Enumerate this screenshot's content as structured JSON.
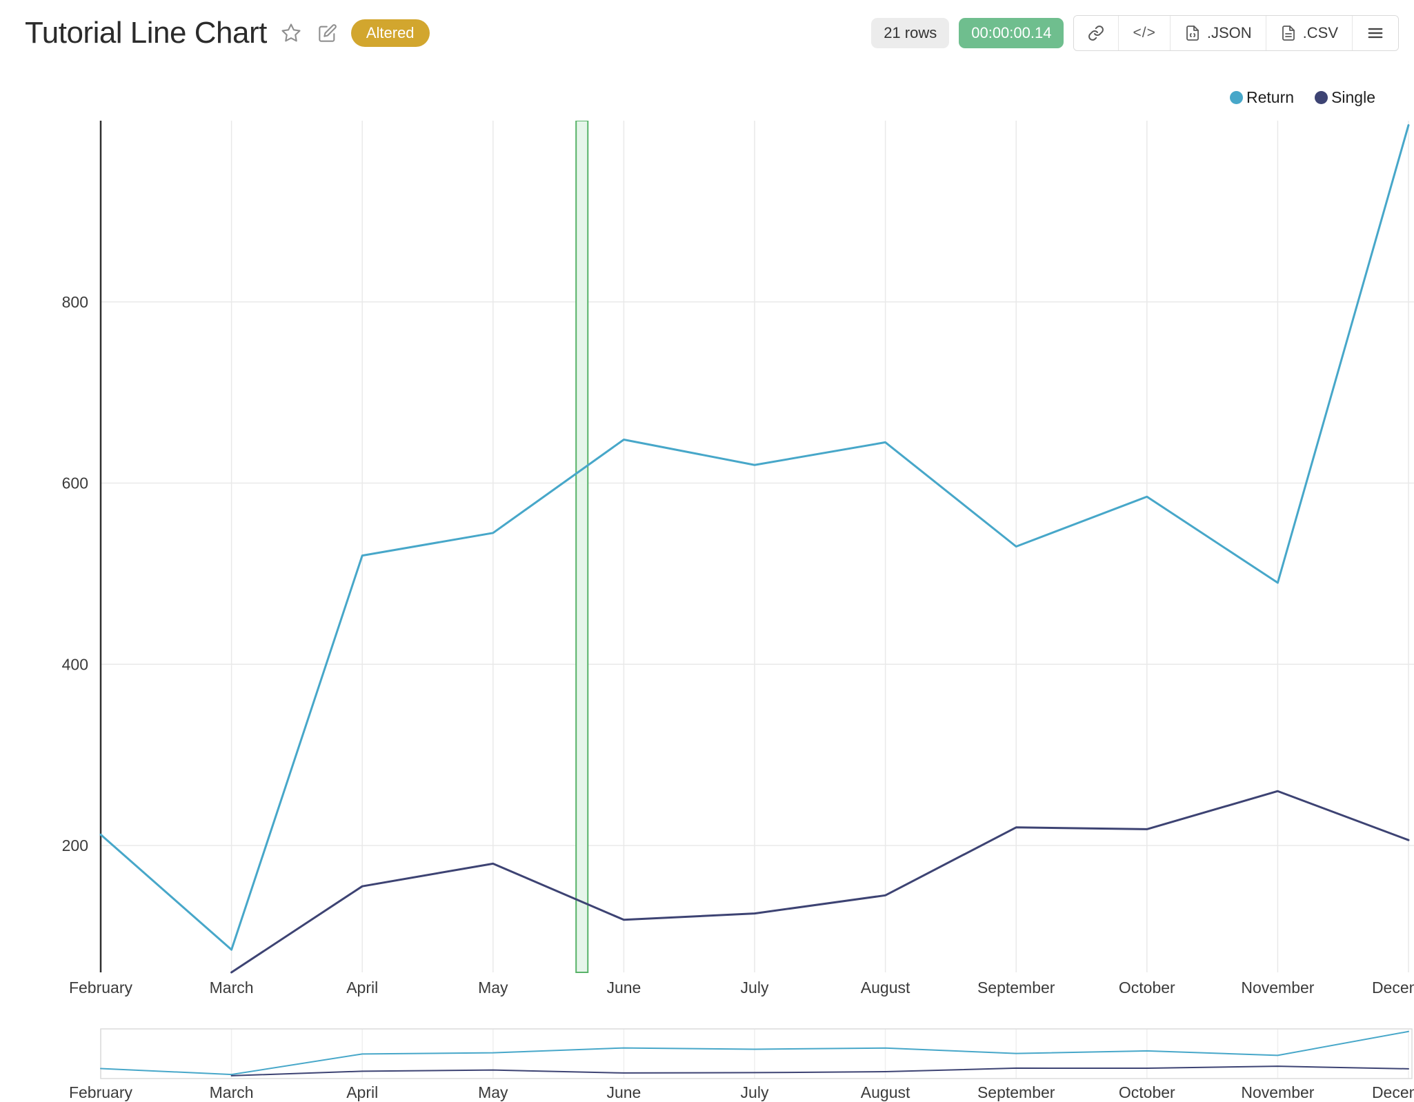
{
  "header": {
    "title": "Tutorial Line Chart",
    "badge": "Altered",
    "badge_color": "#d2a62e",
    "rows_label": "21 rows",
    "runtime_label": "00:00:00.14",
    "runtime_color": "#6fbe8e",
    "code_label": "</>",
    "json_label": ".JSON",
    "csv_label": ".CSV",
    "icons": [
      "star-icon",
      "edit-icon",
      "link-icon",
      "code-icon",
      "json-file-icon",
      "csv-file-icon",
      "hamburger-menu-icon"
    ]
  },
  "chart_data": {
    "type": "line",
    "title": "Tutorial Line Chart",
    "categories": [
      "February",
      "March",
      "April",
      "May",
      "June",
      "July",
      "August",
      "September",
      "October",
      "November",
      "December"
    ],
    "series": [
      {
        "name": "Return",
        "color": "#47a7c9",
        "values": [
          212,
          85,
          520,
          545,
          648,
          620,
          645,
          530,
          585,
          490,
          995
        ]
      },
      {
        "name": "Single",
        "color": "#3d4373",
        "values": [
          null,
          60,
          155,
          180,
          118,
          125,
          145,
          220,
          218,
          260,
          206
        ]
      }
    ],
    "xlabel": "",
    "ylabel": "",
    "ylim": [
      60,
      1000
    ],
    "yticks": [
      200,
      400,
      600,
      800
    ],
    "grid": true,
    "legend_position": "top-right",
    "annotation": {
      "type": "vertical-band",
      "x_index": 3.68,
      "width_index": 0.09,
      "stroke": "#57b268",
      "fill": "#e6f5ea"
    },
    "rangeslider": true
  }
}
